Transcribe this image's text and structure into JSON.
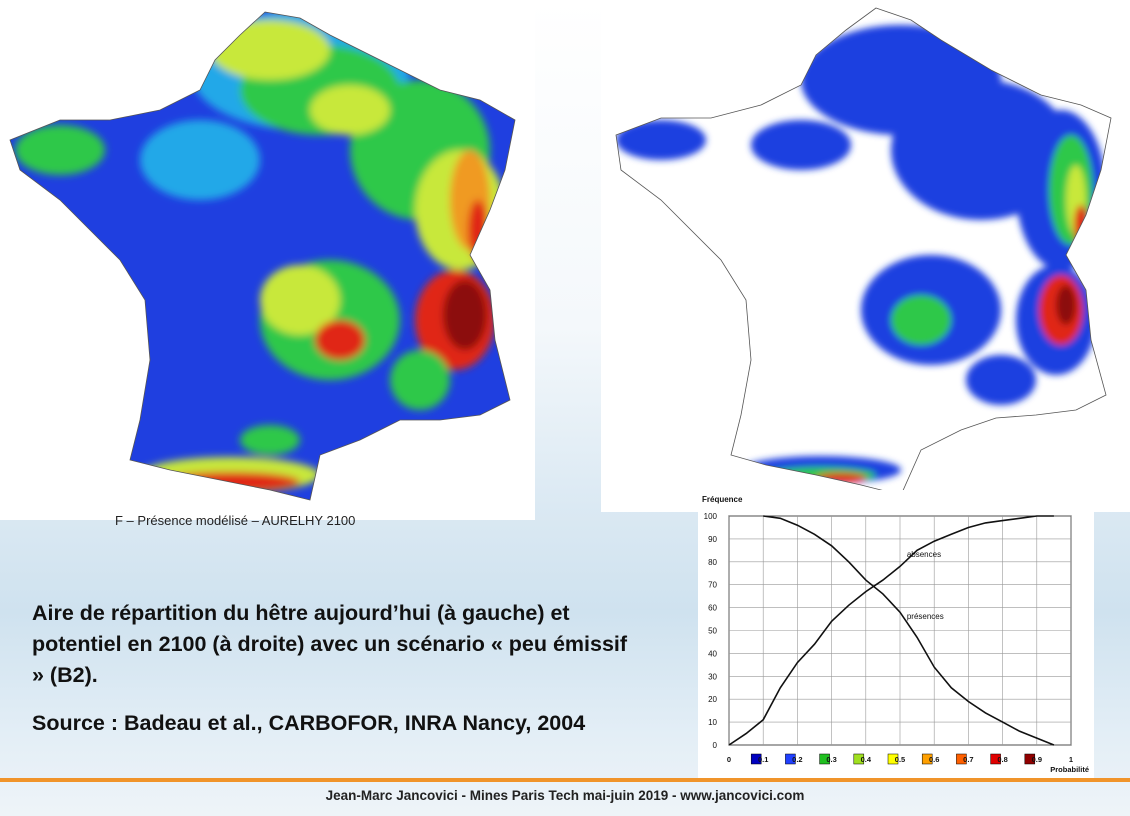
{
  "maps": {
    "left_caption": "F – Présence modélisé – AURELHY 2100"
  },
  "colors": {
    "blue": "#1f3fe0",
    "cyan": "#22a8e8",
    "green": "#2ec84a",
    "yellow_green": "#c8e83a",
    "yellow": "#f0f020",
    "orange": "#f09a20",
    "red": "#e02818",
    "dark_red": "#8c1010",
    "footer_orange": "#f0942a"
  },
  "text": {
    "description": "Aire de répartition du hêtre aujourd’hui (à gauche) et potentiel en 2100 (à droite) avec un scénario « peu émissif » (B2).",
    "source": "Source : Badeau et al., CARBOFOR, INRA Nancy, 2004"
  },
  "footer": {
    "text": "Jean-Marc Jancovici - Mines Paris Tech mai-juin 2019 - www.jancovici.com"
  },
  "chart_data": {
    "type": "line",
    "ylabel": "Fréquence",
    "xlabel": "Probabilité",
    "ylim": [
      0,
      100
    ],
    "xlim": [
      0,
      1
    ],
    "y_ticks": [
      "100",
      "90",
      "80",
      "70",
      "60",
      "50",
      "40",
      "30",
      "20",
      "10",
      "0"
    ],
    "x_ticks": [
      "0",
      "0.1",
      "0.2",
      "0.3",
      "0.4",
      "0.5",
      "0.6",
      "0.7",
      "0.8",
      "0.9",
      "1"
    ],
    "legend_colors": [
      "#0000c0",
      "#2040ff",
      "#20c020",
      "#a0e020",
      "#ffff00",
      "#ffa000",
      "#ff6000",
      "#e00000",
      "#900000"
    ],
    "grid": true,
    "series": [
      {
        "name": "absences",
        "x": [
          0,
          0.05,
          0.1,
          0.15,
          0.2,
          0.25,
          0.3,
          0.35,
          0.4,
          0.45,
          0.5,
          0.55,
          0.6,
          0.65,
          0.7,
          0.75,
          0.8,
          0.85,
          0.9,
          0.95
        ],
        "y": [
          0,
          5,
          11,
          25,
          36,
          44,
          54,
          61,
          67,
          72,
          78,
          85,
          89,
          92,
          95,
          97,
          98,
          99,
          100,
          100
        ]
      },
      {
        "name": "présences",
        "x": [
          0.1,
          0.15,
          0.2,
          0.25,
          0.3,
          0.35,
          0.4,
          0.45,
          0.5,
          0.55,
          0.6,
          0.65,
          0.7,
          0.75,
          0.8,
          0.85,
          0.9,
          0.95
        ],
        "y": [
          100,
          99,
          96,
          92,
          87,
          80,
          72,
          66,
          58,
          47,
          34,
          25,
          19,
          14,
          10,
          6,
          3,
          0
        ]
      }
    ]
  }
}
